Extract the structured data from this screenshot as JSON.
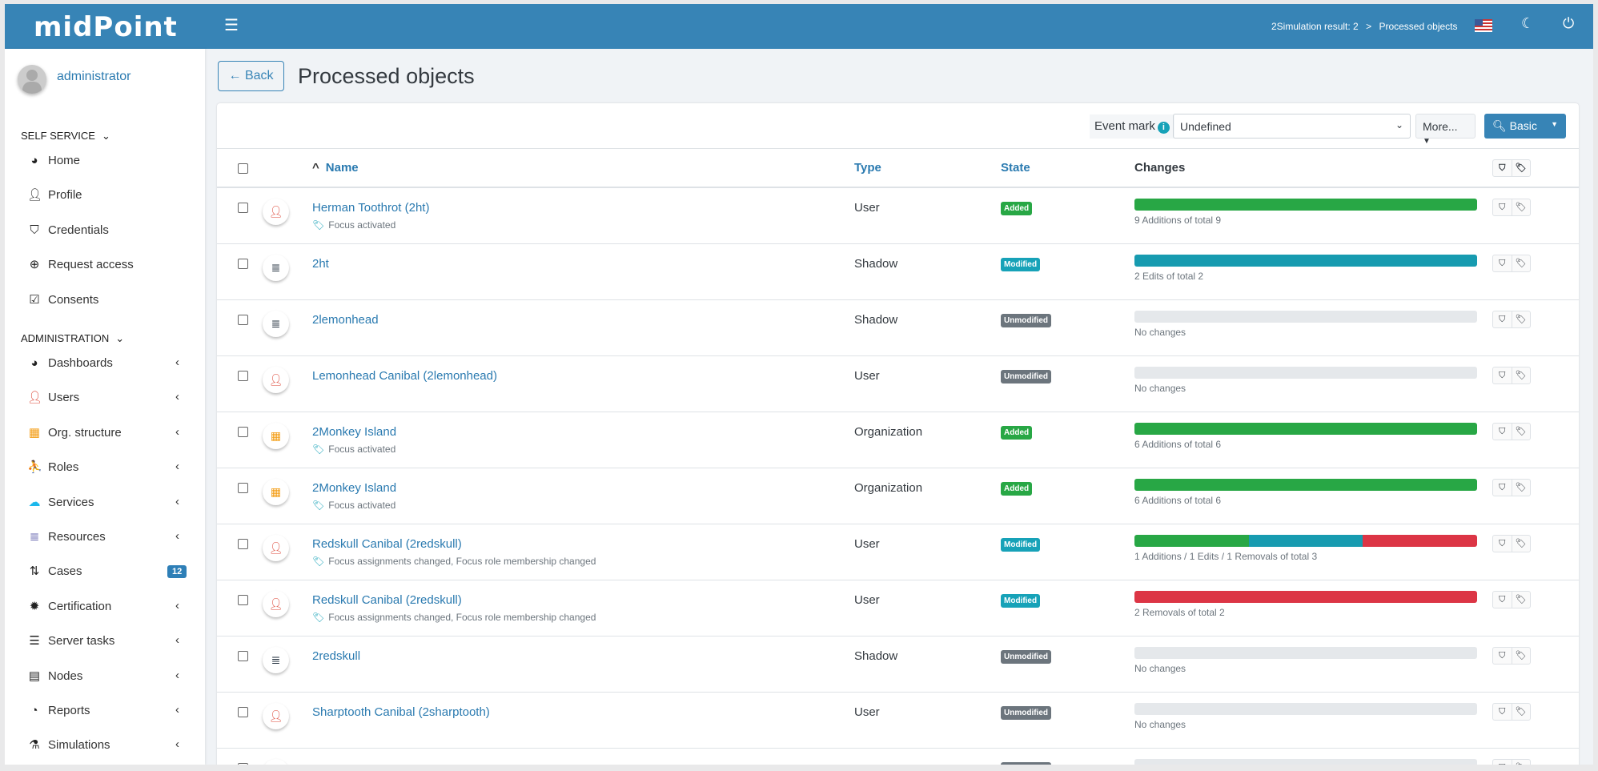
{
  "header": {
    "logo": "midPoint",
    "menu_icon": "hamburger-icon",
    "breadcrumb": [
      "2Simulation result: 2",
      ">",
      "Processed objects"
    ],
    "language": "en-US"
  },
  "sidebar": {
    "user": "administrator",
    "sections": [
      {
        "label": "SELF SERVICE",
        "items": [
          {
            "label": "Home",
            "icon": "dashboard-icon"
          },
          {
            "label": "Profile",
            "icon": "user-icon"
          },
          {
            "label": "Credentials",
            "icon": "shield-icon"
          },
          {
            "label": "Request access",
            "icon": "plus-circle-icon"
          },
          {
            "label": "Consents",
            "icon": "check-square-icon"
          }
        ]
      },
      {
        "label": "ADMINISTRATION",
        "items": [
          {
            "label": "Dashboards",
            "icon": "dashboard-icon",
            "expand": true
          },
          {
            "label": "Users",
            "icon": "user-icon",
            "expand": true
          },
          {
            "label": "Org. structure",
            "icon": "building-icon",
            "expand": true
          },
          {
            "label": "Roles",
            "icon": "role-icon",
            "expand": true
          },
          {
            "label": "Services",
            "icon": "cloud-icon",
            "expand": true
          },
          {
            "label": "Resources",
            "icon": "database-icon",
            "expand": true
          },
          {
            "label": "Cases",
            "icon": "cases-icon",
            "badge": "12"
          },
          {
            "label": "Certification",
            "icon": "certificate-icon",
            "expand": true
          },
          {
            "label": "Server tasks",
            "icon": "tasks-icon",
            "expand": true
          },
          {
            "label": "Nodes",
            "icon": "server-icon",
            "expand": true
          },
          {
            "label": "Reports",
            "icon": "pie-chart-icon",
            "expand": true
          },
          {
            "label": "Simulations",
            "icon": "flask-icon",
            "expand": true
          }
        ]
      }
    ]
  },
  "page": {
    "back": "Back",
    "title": "Processed objects"
  },
  "filter": {
    "event_mark_label": "Event mark",
    "event_mark_value": "Undefined",
    "more": "More...",
    "basic": "Basic"
  },
  "columns": {
    "name": "Name",
    "type": "Type",
    "state": "State",
    "changes": "Changes"
  },
  "colors": {
    "added": "#28a745",
    "modified": "#17a2b8",
    "unmodified": "#6c757d",
    "additions": "#28a745",
    "edits": "#179bb0",
    "removals": "#dc3545",
    "user": "#dc4535",
    "shadow": "#1d2b3a",
    "org": "#f39c12"
  },
  "rows": [
    {
      "name": "Herman Toothrot (2ht)",
      "kind": "user",
      "marks": "Focus activated",
      "type": "User",
      "state": "Added",
      "additions": 9,
      "edits": 0,
      "removals": 0,
      "total": 9,
      "summary": "9 Additions of total 9"
    },
    {
      "name": "2ht",
      "kind": "shadow",
      "marks": "",
      "type": "Shadow",
      "state": "Modified",
      "additions": 0,
      "edits": 2,
      "removals": 0,
      "total": 2,
      "summary": "2 Edits of total 2"
    },
    {
      "name": "2lemonhead",
      "kind": "shadow",
      "marks": "",
      "type": "Shadow",
      "state": "Unmodified",
      "additions": 0,
      "edits": 0,
      "removals": 0,
      "total": 0,
      "summary": "No changes"
    },
    {
      "name": "Lemonhead Canibal (2lemonhead)",
      "kind": "user",
      "marks": "",
      "type": "User",
      "state": "Unmodified",
      "additions": 0,
      "edits": 0,
      "removals": 0,
      "total": 0,
      "summary": "No changes"
    },
    {
      "name": "2Monkey Island",
      "kind": "org",
      "marks": "Focus activated",
      "type": "Organization",
      "state": "Added",
      "additions": 6,
      "edits": 0,
      "removals": 0,
      "total": 6,
      "summary": "6 Additions of total 6"
    },
    {
      "name": "2Monkey Island",
      "kind": "org",
      "marks": "Focus activated",
      "type": "Organization",
      "state": "Added",
      "additions": 6,
      "edits": 0,
      "removals": 0,
      "total": 6,
      "summary": "6 Additions of total 6"
    },
    {
      "name": "Redskull Canibal (2redskull)",
      "kind": "user",
      "marks": "Focus assignments changed, Focus role membership changed",
      "type": "User",
      "state": "Modified",
      "additions": 1,
      "edits": 1,
      "removals": 1,
      "total": 3,
      "summary": "1 Additions / 1 Edits / 1 Removals of total 3"
    },
    {
      "name": "Redskull Canibal (2redskull)",
      "kind": "user",
      "marks": "Focus assignments changed, Focus role membership changed",
      "type": "User",
      "state": "Modified",
      "additions": 0,
      "edits": 0,
      "removals": 2,
      "total": 2,
      "summary": "2 Removals of total 2"
    },
    {
      "name": "2redskull",
      "kind": "shadow",
      "marks": "",
      "type": "Shadow",
      "state": "Unmodified",
      "additions": 0,
      "edits": 0,
      "removals": 0,
      "total": 0,
      "summary": "No changes"
    },
    {
      "name": "Sharptooth Canibal (2sharptooth)",
      "kind": "user",
      "marks": "",
      "type": "User",
      "state": "Unmodified",
      "additions": 0,
      "edits": 0,
      "removals": 0,
      "total": 0,
      "summary": "No changes"
    },
    {
      "name": "",
      "kind": "shadow",
      "marks": "",
      "type": "",
      "state": "Unmodified",
      "additions": 0,
      "edits": 0,
      "removals": 0,
      "total": 0,
      "summary": ""
    }
  ]
}
